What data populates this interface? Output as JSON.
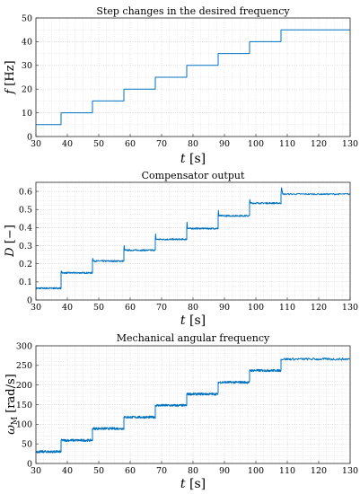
{
  "chart_data": [
    {
      "type": "line",
      "title": "Step changes in the desired frequency",
      "xlabel": "t",
      "xunit": "[s]",
      "ylabel": "f",
      "yunit": "[Hz]",
      "xlim": [
        30,
        130
      ],
      "ylim": [
        0,
        50
      ],
      "xticks": [
        30,
        40,
        50,
        60,
        70,
        80,
        90,
        100,
        110,
        120,
        130
      ],
      "yticks": [
        0,
        10,
        20,
        30,
        40,
        50
      ],
      "grid": true,
      "color": "#0072bd",
      "step_times": [
        30,
        38,
        48,
        58,
        68,
        78,
        88,
        98,
        108,
        130
      ],
      "step_values": [
        5,
        10,
        15,
        20,
        25,
        30,
        35,
        40,
        45
      ]
    },
    {
      "type": "line",
      "title": "Compensator output",
      "xlabel": "t",
      "xunit": "[s]",
      "ylabel": "D",
      "yunit": "[−]",
      "xlim": [
        30,
        130
      ],
      "ylim": [
        0,
        0.65
      ],
      "xticks": [
        30,
        40,
        50,
        60,
        70,
        80,
        90,
        100,
        110,
        120,
        130
      ],
      "yticks": [
        0,
        0.1,
        0.2,
        0.3,
        0.4,
        0.5,
        0.6
      ],
      "grid": true,
      "color": "#0072bd",
      "step_times": [
        30,
        38,
        48,
        58,
        68,
        78,
        88,
        98,
        108,
        130
      ],
      "step_values": [
        0.065,
        0.15,
        0.215,
        0.275,
        0.335,
        0.395,
        0.465,
        0.535,
        0.585
      ],
      "overshoot_peaks": [
        null,
        0.16,
        0.23,
        0.3,
        0.365,
        0.43,
        0.495,
        0.555,
        0.62
      ]
    },
    {
      "type": "line",
      "title": "Mechanical angular frequency",
      "xlabel": "t",
      "xunit": "[s]",
      "ylabel": "ω",
      "ylabel_subscript": "M",
      "yunit": "[rad/s]",
      "xlim": [
        30,
        130
      ],
      "ylim": [
        0,
        300
      ],
      "xticks": [
        30,
        40,
        50,
        60,
        70,
        80,
        90,
        100,
        110,
        120,
        130
      ],
      "yticks": [
        0,
        50,
        100,
        150,
        200,
        250,
        300
      ],
      "grid": true,
      "color": "#0072bd",
      "step_times": [
        30,
        38,
        48,
        58,
        68,
        78,
        88,
        98,
        108,
        130
      ],
      "step_values": [
        30,
        59,
        89,
        118,
        148,
        177,
        207,
        237,
        266
      ]
    }
  ]
}
